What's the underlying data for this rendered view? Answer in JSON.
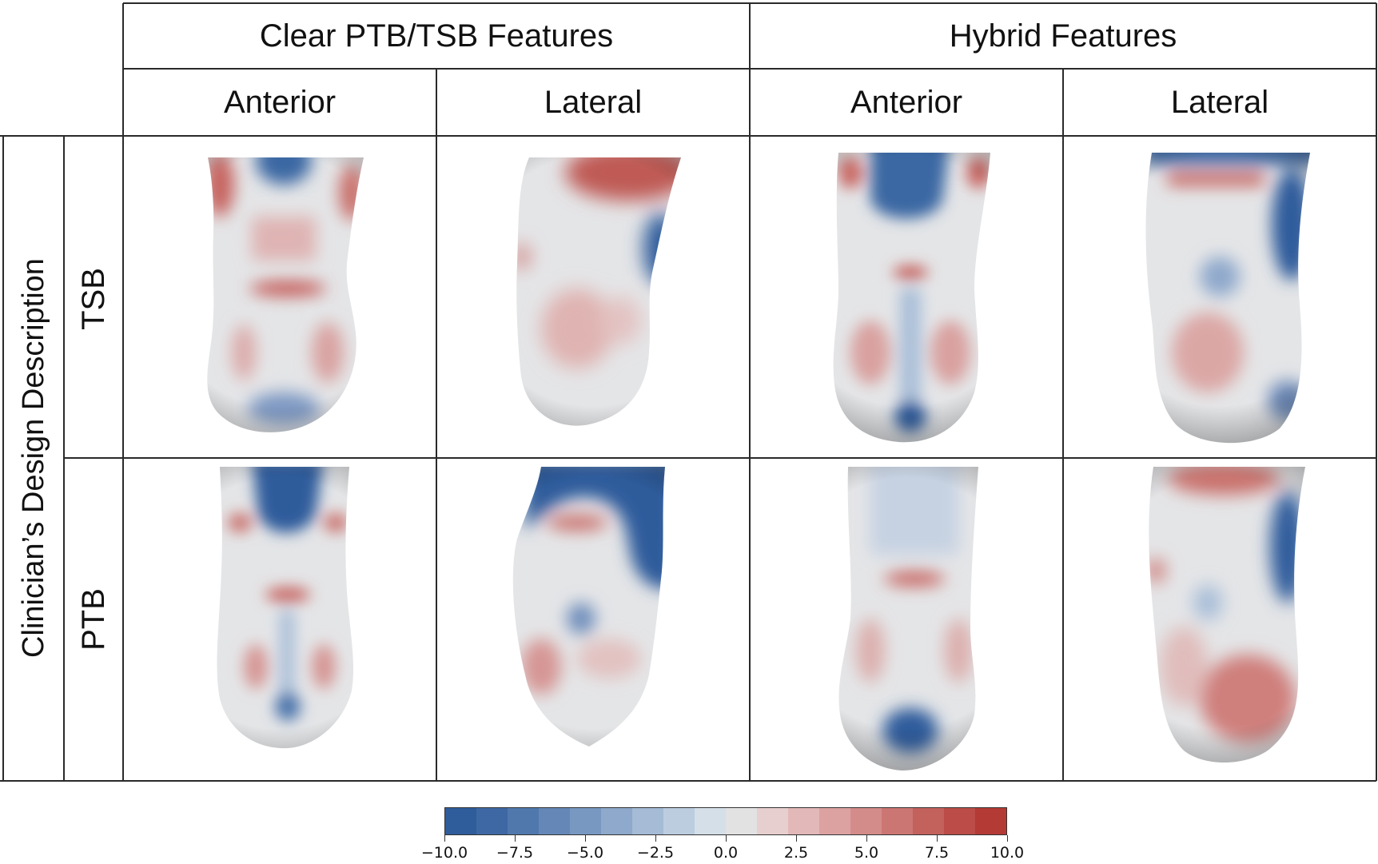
{
  "header": {
    "group_left": "Clear PTB/TSB Features",
    "group_right": "Hybrid Features",
    "view_anterior": "Anterior",
    "view_lateral": "Lateral"
  },
  "rows": {
    "axis_label": "Clinician’s Design Description",
    "tsb": "TSB",
    "ptb": "PTB"
  },
  "colorbar": {
    "min": -10.0,
    "max": 10.0,
    "tick_labels": [
      "−10.0",
      "−7.5",
      "−5.0",
      "−2.5",
      "0.0",
      "2.5",
      "5.0",
      "7.5",
      "10.0"
    ],
    "tick_values": [
      -10.0,
      -7.5,
      -5.0,
      -2.5,
      0.0,
      2.5,
      5.0,
      7.5,
      10.0
    ],
    "colors": [
      "#2f5c9b",
      "#3e68a3",
      "#5078ad",
      "#6587b7",
      "#7898c2",
      "#8ea9cb",
      "#a5bbd6",
      "#bccde0",
      "#d4dfe8",
      "#e2e2e2",
      "#e8cfcf",
      "#e3b8b8",
      "#dca2a1",
      "#d48c8a",
      "#cc7673",
      "#c3615d",
      "#bb4c47",
      "#b33a35"
    ]
  },
  "colors": {
    "blue": "#2f5c9b",
    "red": "#b33a35",
    "neutral": "#e6e6e6"
  }
}
